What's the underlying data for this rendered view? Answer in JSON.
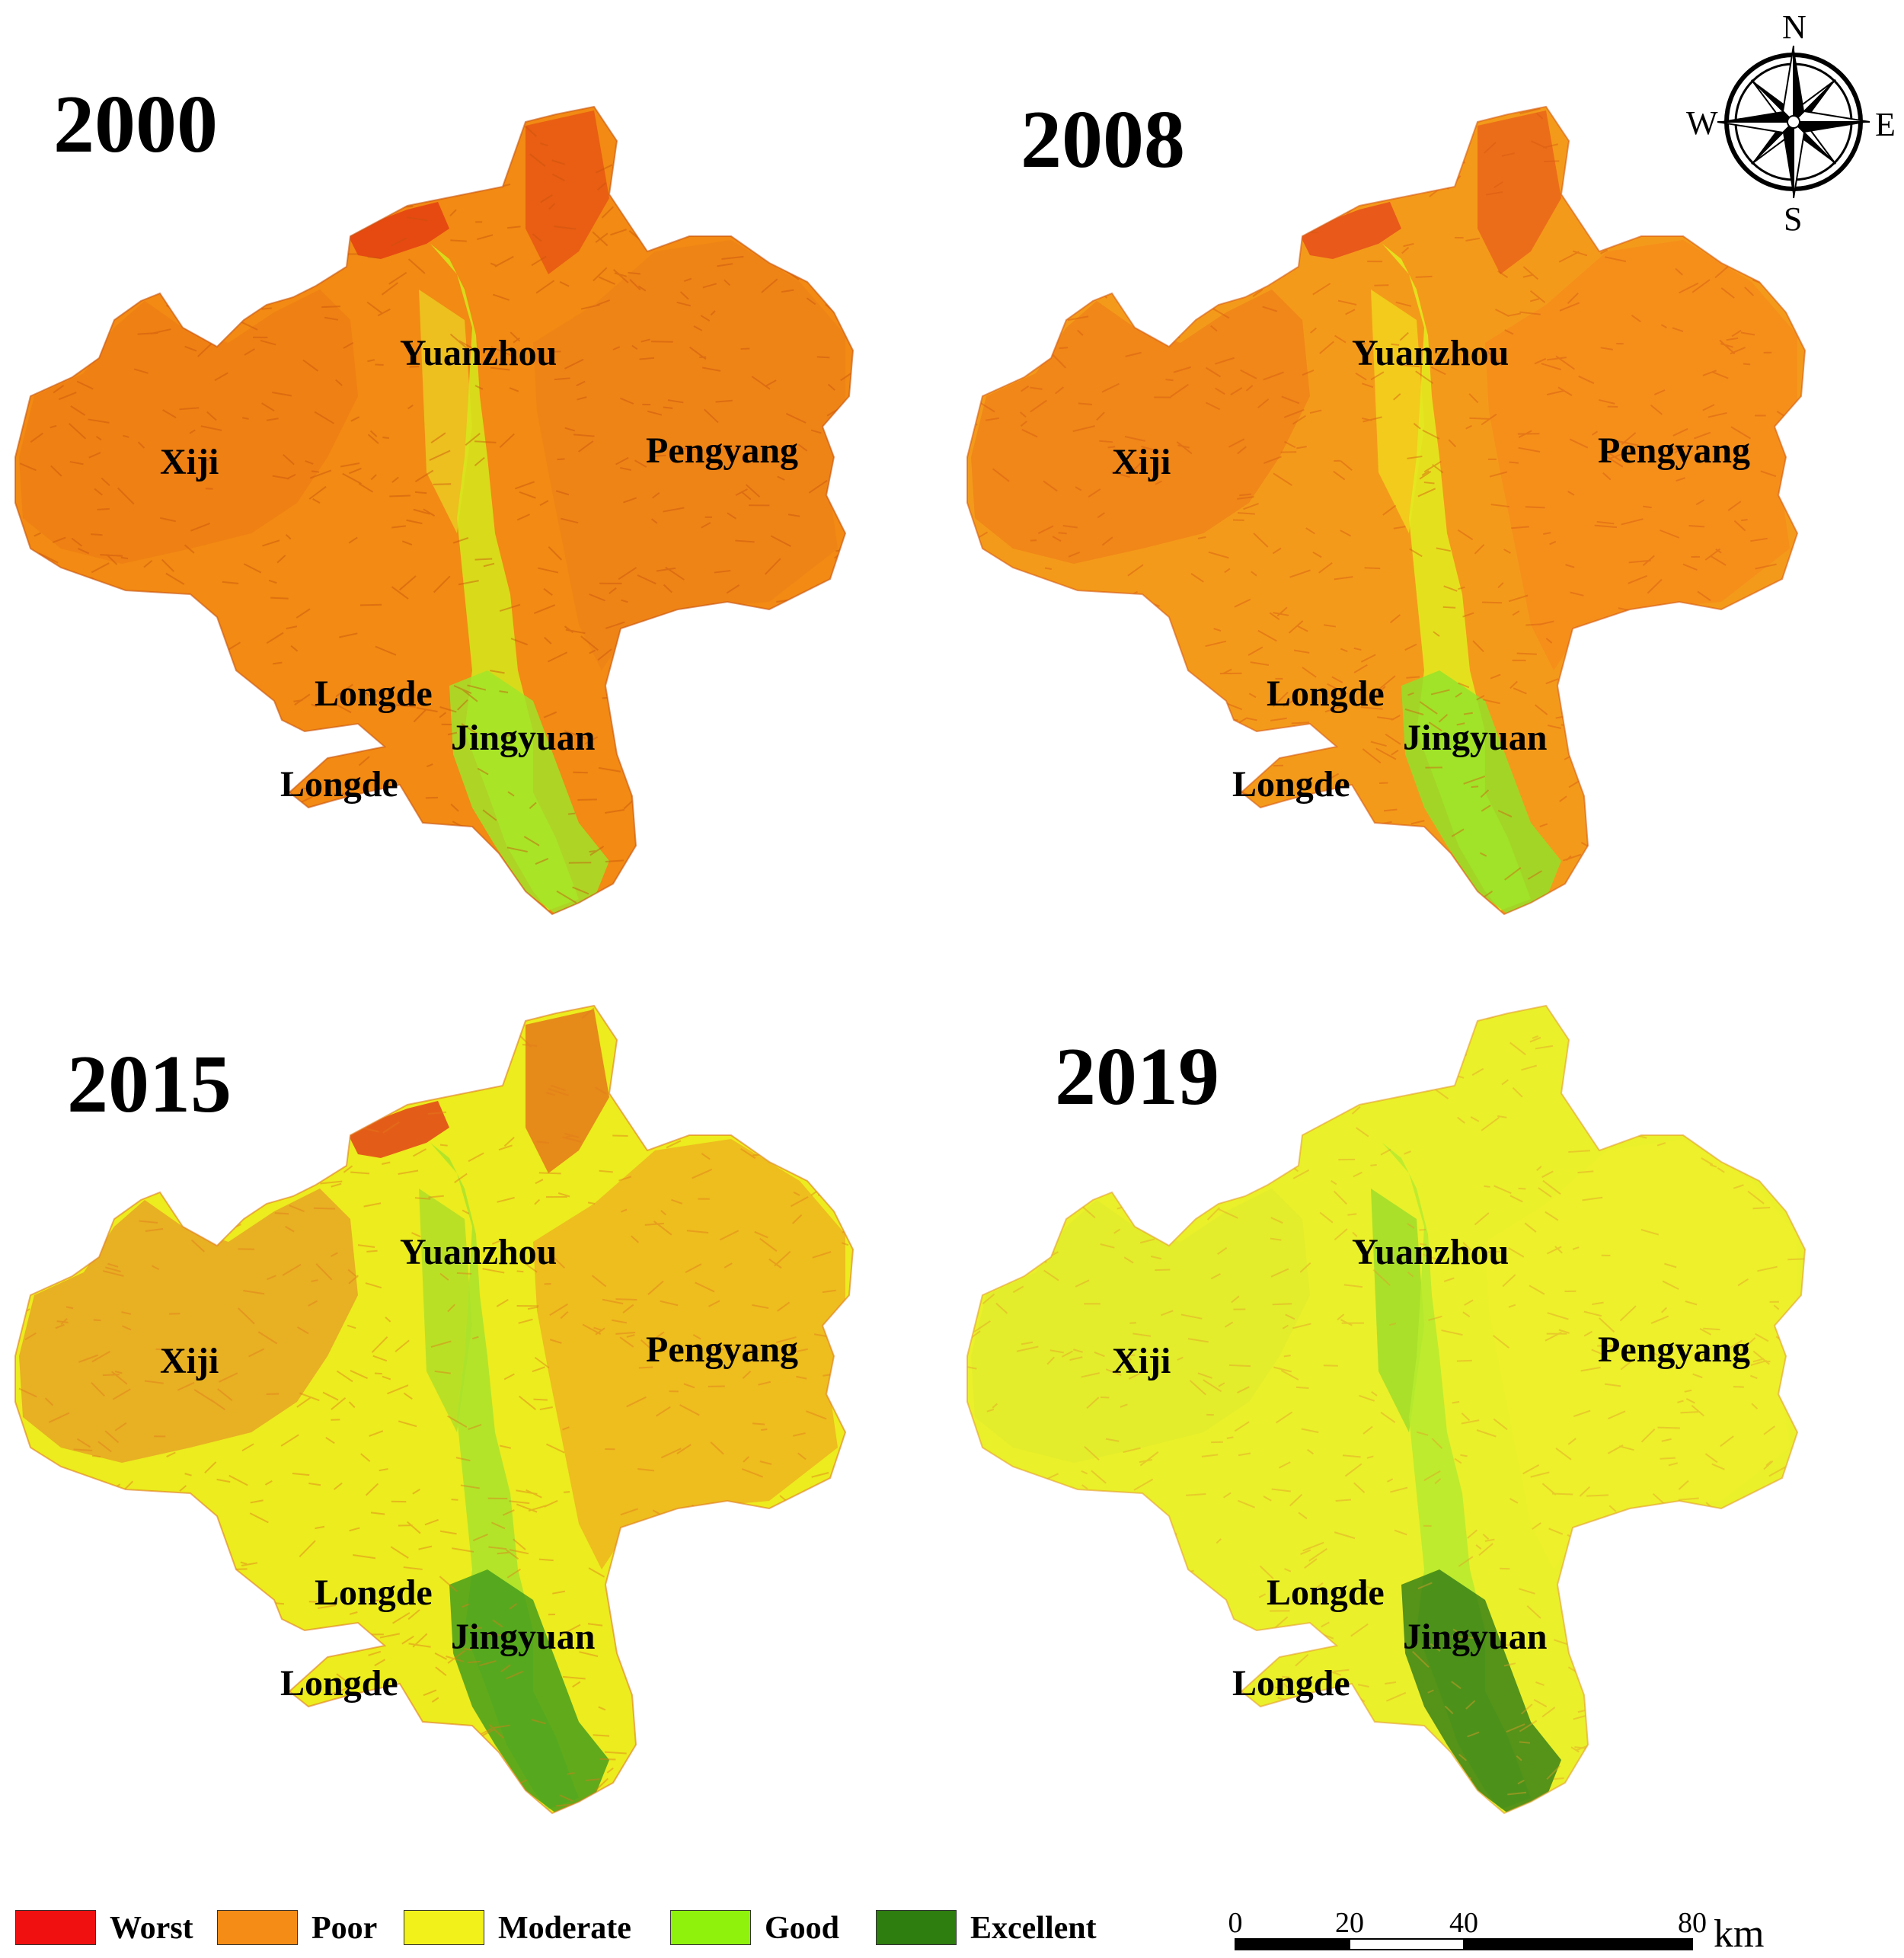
{
  "panels": [
    {
      "year": "2000",
      "places": {
        "yuanzhou": "Yuanzhou",
        "xiji": "Xiji",
        "pengyang": "Pengyang",
        "longde_north": "Longde",
        "jingyuan": "Jingyuan",
        "longde_south": "Longde"
      },
      "colors": {
        "base": "#f28a13",
        "east": "#ef8318",
        "west": "#ee7e14",
        "valley": "#d5e81c",
        "south": "#9ce62a",
        "hot": "#e23a12",
        "texture": "#c8520e",
        "tongue": "#e9e228"
      }
    },
    {
      "year": "2008",
      "places": {
        "yuanzhou": "Yuanzhou",
        "xiji": "Xiji",
        "pengyang": "Pengyang",
        "longde_north": "Longde",
        "jingyuan": "Jingyuan",
        "longde_south": "Longde"
      },
      "colors": {
        "base": "#f49a1a",
        "east": "#f58d1b",
        "west": "#ee8419",
        "valley": "#e2ec20",
        "south": "#8fe32b",
        "hot": "#e5481a",
        "texture": "#d55a12",
        "tongue": "#f0ec1e"
      }
    },
    {
      "year": "2015",
      "places": {
        "yuanzhou": "Yuanzhou",
        "xiji": "Xiji",
        "pengyang": "Pengyang",
        "longde_north": "Longde",
        "jingyuan": "Jingyuan",
        "longde_south": "Longde"
      },
      "colors": {
        "base": "#ecec1e",
        "east": "#efb51f",
        "west": "#e8a624",
        "valley": "#a9e32c",
        "south": "#3e9a1c",
        "hot": "#e23a16",
        "texture": "#e07a1c",
        "tongue": "#9ad82a"
      }
    },
    {
      "year": "2019",
      "places": {
        "yuanzhou": "Yuanzhou",
        "xiji": "Xiji",
        "pengyang": "Pengyang",
        "longde_north": "Longde",
        "jingyuan": "Jingyuan",
        "longde_south": "Longde"
      },
      "colors": {
        "base": "#eaf02a",
        "east": "#edf02a",
        "west": "#e2ec2c",
        "valley": "#b6ea2e",
        "south": "#2f7c15",
        "hot": "#eaf02a",
        "texture": "#e49d2c",
        "tongue": "#7fd62a"
      }
    }
  ],
  "compass": {
    "n": "N",
    "s": "S",
    "e": "E",
    "w": "W"
  },
  "legend": [
    {
      "label": "Worst",
      "color": "#f01010"
    },
    {
      "label": "Poor",
      "color": "#f58c16"
    },
    {
      "label": "Moderate",
      "color": "#f2f21a"
    },
    {
      "label": "Good",
      "color": "#8ef20c"
    },
    {
      "label": "Excellent",
      "color": "#2e7d0f"
    }
  ],
  "scalebar": {
    "ticks": [
      "0",
      "20",
      "40",
      "80"
    ],
    "tick_values": [
      0,
      20,
      40,
      80
    ],
    "unit": "km"
  }
}
